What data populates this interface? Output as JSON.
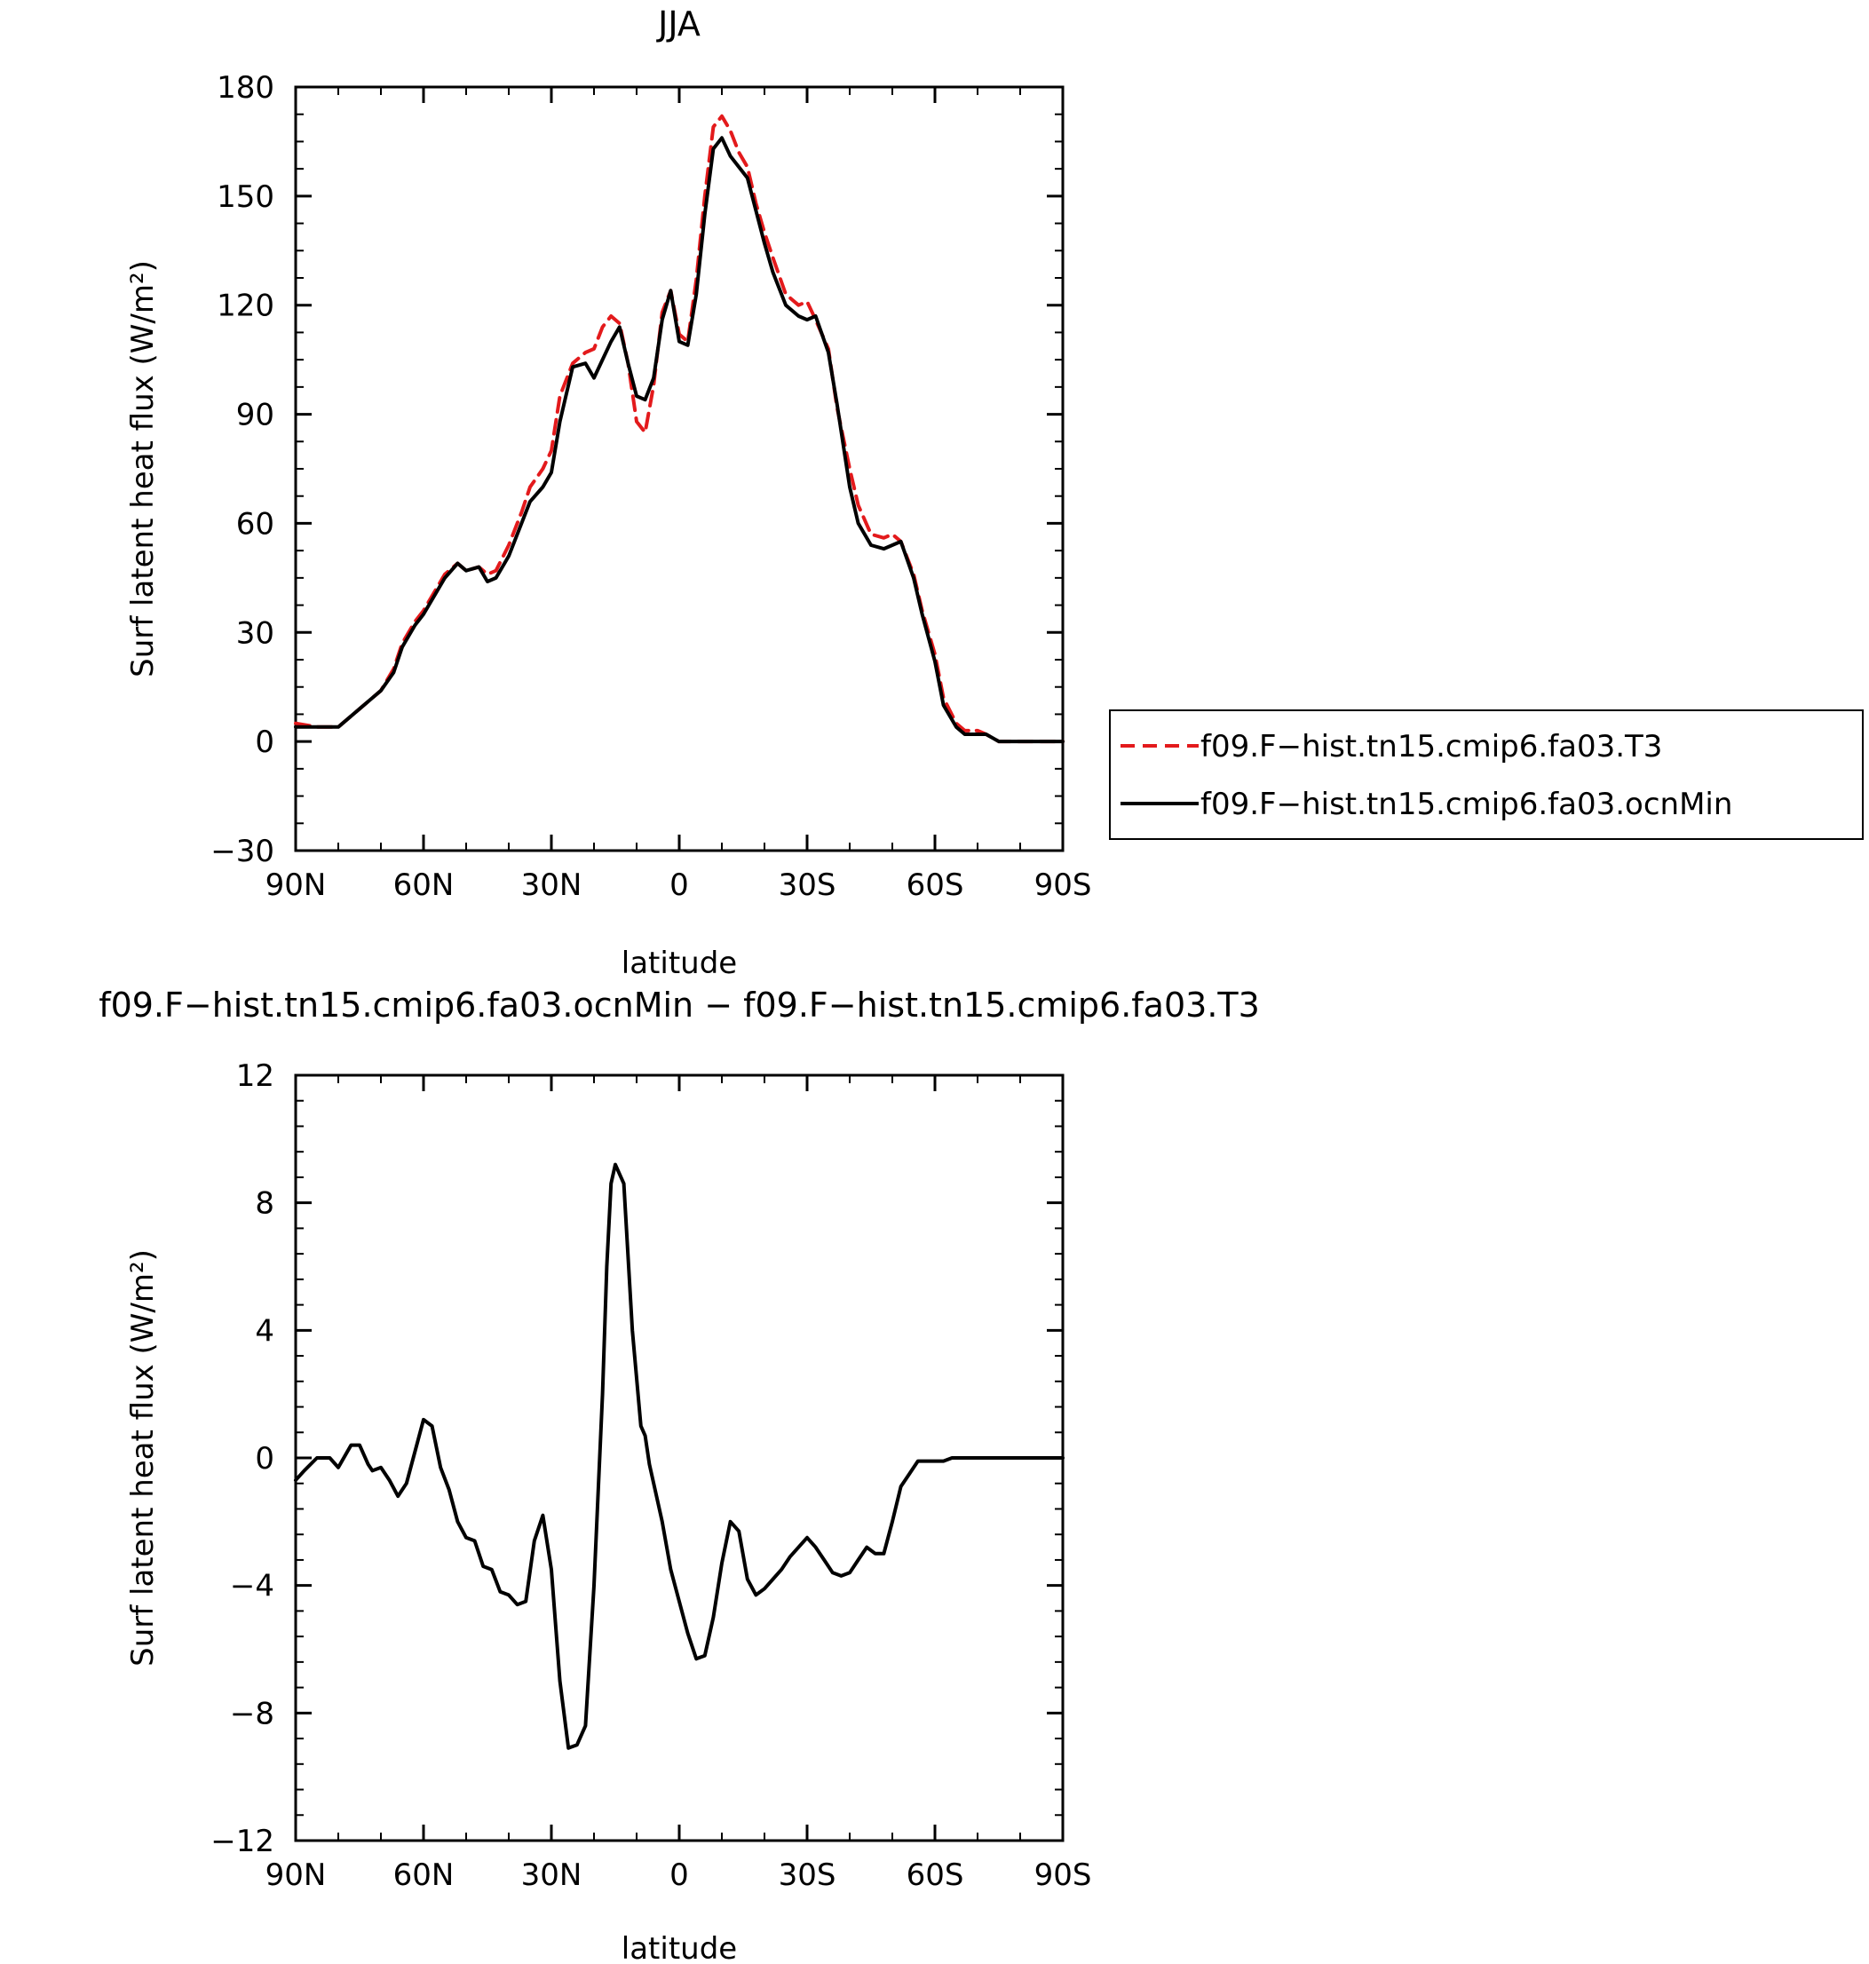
{
  "chart_data": [
    {
      "type": "line",
      "title": "JJA",
      "xlabel": "latitude",
      "ylabel": "Surf latent heat flux (W/m²)",
      "xlim": [
        90,
        -90
      ],
      "ylim": [
        -30,
        180
      ],
      "xticks": [
        90,
        60,
        30,
        0,
        -30,
        -60,
        -90
      ],
      "xtick_labels": [
        "90N",
        "60N",
        "30N",
        "0",
        "30S",
        "60S",
        "90S"
      ],
      "yticks": [
        -30,
        0,
        30,
        60,
        90,
        120,
        150,
        180
      ],
      "ytick_labels": [
        "−30",
        "0",
        "30",
        "60",
        "90",
        "120",
        "150",
        "180"
      ],
      "legend_placement": "right",
      "grid": false,
      "series": [
        {
          "name": "f09.F−hist.tn15.cmip6.fa03.T3",
          "color": "#e31a1c",
          "dash": "dashed",
          "x": [
            90,
            85,
            80,
            75,
            72,
            70,
            67,
            65,
            62,
            60,
            57,
            55,
            52,
            50,
            47,
            45,
            43,
            40,
            37,
            35,
            32,
            30,
            28,
            25,
            22,
            20,
            18,
            16,
            14,
            12,
            10,
            8,
            6,
            4,
            2,
            0,
            -2,
            -4,
            -6,
            -8,
            -10,
            -12,
            -14,
            -16,
            -18,
            -20,
            -22,
            -25,
            -28,
            -30,
            -32,
            -35,
            -37,
            -40,
            -42,
            -45,
            -48,
            -50,
            -52,
            -55,
            -57,
            -60,
            -62,
            -65,
            -67,
            -70,
            -72,
            -75,
            -78,
            -80,
            -85,
            -90
          ],
          "y": [
            5,
            4,
            4,
            9,
            12,
            14,
            20,
            27,
            33,
            36,
            42,
            46,
            49,
            47,
            48,
            46,
            47,
            54,
            63,
            70,
            75,
            80,
            95,
            104,
            107,
            108,
            114,
            117,
            115,
            104,
            88,
            85,
            98,
            118,
            124,
            112,
            110,
            127,
            150,
            169,
            172,
            168,
            162,
            158,
            148,
            140,
            133,
            123,
            120,
            121,
            116,
            108,
            92,
            75,
            65,
            57,
            56,
            57,
            55,
            46,
            36,
            24,
            12,
            5,
            3,
            3,
            2,
            0,
            0,
            0,
            0,
            0
          ]
        },
        {
          "name": "f09.F−hist.tn15.cmip6.fa03.ocnMin",
          "color": "#000000",
          "dash": "solid",
          "x": [
            90,
            85,
            80,
            75,
            72,
            70,
            67,
            65,
            62,
            60,
            57,
            55,
            52,
            50,
            47,
            45,
            43,
            40,
            37,
            35,
            32,
            30,
            28,
            25,
            22,
            20,
            18,
            16,
            14,
            12,
            10,
            8,
            6,
            4,
            2,
            0,
            -2,
            -4,
            -6,
            -8,
            -10,
            -12,
            -14,
            -16,
            -18,
            -20,
            -22,
            -25,
            -28,
            -30,
            -32,
            -35,
            -37,
            -40,
            -42,
            -45,
            -48,
            -50,
            -52,
            -55,
            -57,
            -60,
            -62,
            -65,
            -67,
            -70,
            -72,
            -75,
            -78,
            -80,
            -85,
            -90
          ],
          "y": [
            4,
            4,
            4,
            9,
            12,
            14,
            19,
            26,
            32,
            35,
            41,
            45,
            49,
            47,
            48,
            44,
            45,
            51,
            60,
            66,
            70,
            74,
            88,
            103,
            104,
            100,
            105,
            110,
            114,
            104,
            95,
            94,
            100,
            116,
            124,
            110,
            109,
            123,
            145,
            163,
            166,
            161,
            158,
            155,
            146,
            137,
            129,
            120,
            117,
            116,
            117,
            107,
            93,
            70,
            60,
            54,
            53,
            54,
            55,
            45,
            35,
            22,
            10,
            4,
            2,
            2,
            2,
            0,
            0,
            0,
            0,
            0
          ]
        }
      ]
    },
    {
      "type": "line",
      "title": "f09.F−hist.tn15.cmip6.fa03.ocnMin − f09.F−hist.tn15.cmip6.fa03.T3",
      "xlabel": "latitude",
      "ylabel": "Surf latent heat flux (W/m²)",
      "xlim": [
        90,
        -90
      ],
      "ylim": [
        -12,
        12
      ],
      "xticks": [
        90,
        60,
        30,
        0,
        -30,
        -60,
        -90
      ],
      "xtick_labels": [
        "90N",
        "60N",
        "30N",
        "0",
        "30S",
        "60S",
        "90S"
      ],
      "yticks": [
        -12,
        -8,
        -4,
        0,
        4,
        8,
        12
      ],
      "ytick_labels": [
        "−12",
        "−8",
        "−4",
        "0",
        "4",
        "8",
        "12"
      ],
      "grid": false,
      "series": [
        {
          "color": "#000000",
          "dash": "solid",
          "x": [
            90,
            88,
            85,
            82,
            80,
            77,
            75,
            73,
            72,
            70,
            68,
            66,
            64,
            62,
            60,
            58,
            56,
            54,
            52,
            50,
            48,
            46,
            44,
            42,
            40,
            38,
            36,
            34,
            32,
            30,
            28,
            26,
            24,
            22,
            20,
            18,
            17,
            16,
            15,
            13,
            11,
            9,
            8,
            7,
            6,
            4,
            2,
            0,
            -2,
            -4,
            -6,
            -8,
            -10,
            -12,
            -14,
            -16,
            -18,
            -20,
            -22,
            -24,
            -26,
            -28,
            -30,
            -32,
            -34,
            -36,
            -38,
            -40,
            -42,
            -44,
            -46,
            -48,
            -50,
            -52,
            -54,
            -56,
            -58,
            -60,
            -62,
            -64,
            -66,
            -68,
            -70,
            -72,
            -75,
            -80,
            -85,
            -90
          ],
          "y": [
            -0.7,
            -0.4,
            0,
            0,
            -0.3,
            0.4,
            0.4,
            -0.2,
            -0.4,
            -0.3,
            -0.7,
            -1.2,
            -0.8,
            0.2,
            1.2,
            1.0,
            -0.3,
            -1.0,
            -2.0,
            -2.5,
            -2.6,
            -3.4,
            -3.5,
            -4.2,
            -4.3,
            -4.6,
            -4.5,
            -2.6,
            -1.8,
            -3.5,
            -7.0,
            -9.1,
            -9.0,
            -8.4,
            -4.0,
            2.0,
            6.0,
            8.6,
            9.2,
            8.6,
            4.0,
            1.0,
            0.7,
            -0.2,
            -0.8,
            -2.0,
            -3.5,
            -4.5,
            -5.5,
            -6.3,
            -6.2,
            -5.0,
            -3.3,
            -2.0,
            -2.3,
            -3.8,
            -4.3,
            -4.1,
            -3.8,
            -3.5,
            -3.1,
            -2.8,
            -2.5,
            -2.8,
            -3.2,
            -3.6,
            -3.7,
            -3.6,
            -3.2,
            -2.8,
            -3.0,
            -3.0,
            -2.0,
            -0.9,
            -0.5,
            -0.1,
            -0.1,
            -0.1,
            -0.1,
            0,
            0,
            0,
            0,
            0,
            0,
            0,
            0,
            0
          ]
        }
      ]
    }
  ]
}
